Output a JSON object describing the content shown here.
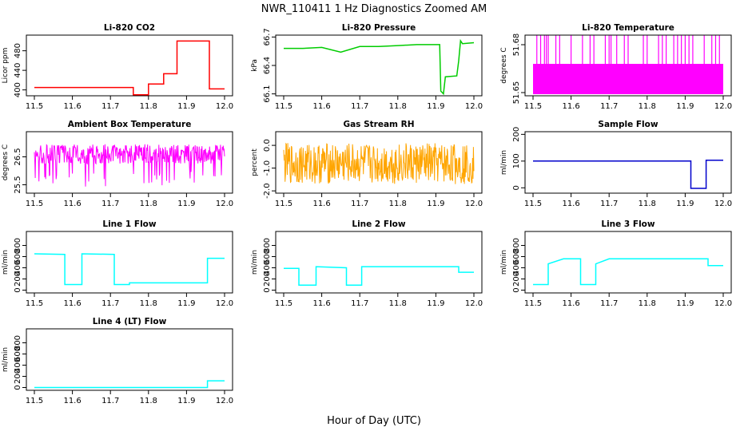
{
  "figure": {
    "title": "NWR_110411  1 Hz Diagnostics Zoomed AM",
    "xlabel": "Hour of Day (UTC)"
  },
  "chart_data": [
    {
      "type": "line",
      "title": "Li-820 CO2",
      "ylabel": "Licor ppm",
      "color": "#ff0000",
      "xlim": [
        11.5,
        12.0
      ],
      "xticks": [
        11.5,
        11.6,
        11.7,
        11.8,
        11.9,
        12.0
      ],
      "ylim": [
        388,
        512
      ],
      "yticks": [
        400,
        440,
        480
      ],
      "series": [
        {
          "x": [
            11.5,
            11.76,
            11.76,
            11.8,
            11.8,
            11.84,
            11.84,
            11.875,
            11.875,
            11.96,
            11.96,
            12.0
          ],
          "y": [
            405,
            405,
            390,
            390,
            412,
            412,
            433,
            433,
            500,
            500,
            402,
            402
          ]
        }
      ]
    },
    {
      "type": "line",
      "title": "Li-820 Pressure",
      "ylabel": "kPa",
      "color": "#00cc00",
      "xlim": [
        11.5,
        12.0
      ],
      "xticks": [
        11.5,
        11.6,
        11.7,
        11.8,
        11.9,
        12.0
      ],
      "ylim": [
        66.08,
        66.72
      ],
      "yticks": [
        66.1,
        66.4,
        66.7
      ],
      "series": [
        {
          "x": [
            11.5,
            11.55,
            11.6,
            11.65,
            11.7,
            11.75,
            11.8,
            11.85,
            11.88,
            11.91,
            11.913,
            11.92,
            11.925,
            11.955,
            11.96,
            11.965,
            11.97,
            12.0
          ],
          "y": [
            66.58,
            66.58,
            66.59,
            66.54,
            66.6,
            66.6,
            66.61,
            66.62,
            66.62,
            66.62,
            66.13,
            66.1,
            66.28,
            66.29,
            66.45,
            66.66,
            66.63,
            66.64
          ]
        }
      ]
    },
    {
      "type": "line",
      "title": "Li-820 Temperature",
      "ylabel": "degrees C",
      "color": "#ff00ff",
      "xlim": [
        11.5,
        12.0
      ],
      "xticks": [
        11.5,
        11.6,
        11.7,
        11.8,
        11.9,
        12.0
      ],
      "ylim": [
        51.648,
        51.686
      ],
      "yticks": [
        51.65,
        51.68
      ],
      "band": [
        51.649,
        51.668
      ],
      "spike_top": 51.686,
      "spikes": [
        11.51,
        11.52,
        11.53,
        11.535,
        11.54,
        11.56,
        11.57,
        11.6,
        11.63,
        11.65,
        11.66,
        11.69,
        11.7,
        11.705,
        11.72,
        11.74,
        11.75,
        11.79,
        11.8,
        11.83,
        11.84,
        11.85,
        11.87,
        11.88,
        11.89,
        11.9,
        11.91,
        11.92,
        11.95,
        11.97,
        11.98,
        11.99
      ]
    },
    {
      "type": "line",
      "title": "Ambient Box Temperature",
      "ylabel": "degrees C",
      "color": "#ff00ff",
      "xlim": [
        11.5,
        12.0
      ],
      "xticks": [
        11.5,
        11.6,
        11.7,
        11.8,
        11.9,
        12.0
      ],
      "ylim": [
        25.2,
        27.4
      ],
      "yticks": [
        25.5,
        26.5
      ],
      "noise": {
        "mean": 26.6,
        "amp": 0.35,
        "dip_min": 25.4
      }
    },
    {
      "type": "line",
      "title": "Gas Stream RH",
      "ylabel": "percent",
      "color": "#ffa500",
      "xlim": [
        11.5,
        12.0
      ],
      "xticks": [
        11.5,
        11.6,
        11.7,
        11.8,
        11.9,
        12.0
      ],
      "ylim": [
        -2.1,
        0.6
      ],
      "yticks": [
        -2.0,
        -1.0,
        0.0
      ],
      "noise": {
        "mean": -0.8,
        "amp": 0.9
      }
    },
    {
      "type": "line",
      "title": "Sample Flow",
      "ylabel": "ml/min",
      "color": "#0000cc",
      "xlim": [
        11.5,
        12.0
      ],
      "xticks": [
        11.5,
        11.6,
        11.7,
        11.8,
        11.9,
        12.0
      ],
      "ylim": [
        -20,
        210
      ],
      "yticks": [
        0,
        100,
        200
      ],
      "series": [
        {
          "x": [
            11.5,
            11.915,
            11.915,
            11.955,
            11.955,
            12.0
          ],
          "y": [
            100,
            100,
            -2,
            -2,
            103,
            103
          ]
        }
      ]
    },
    {
      "type": "line",
      "title": "Line 1 Flow",
      "ylabel": "ml/min",
      "color": "#00ffff",
      "xlim": [
        11.5,
        12.0
      ],
      "xticks": [
        11.5,
        11.6,
        11.7,
        11.8,
        11.9,
        12.0
      ],
      "ylim": [
        -50,
        1050
      ],
      "yticks": [
        0,
        200,
        400,
        600,
        800
      ],
      "series": [
        {
          "x": [
            11.5,
            11.58,
            11.58,
            11.625,
            11.625,
            11.71,
            11.71,
            11.75,
            11.75,
            11.955,
            11.955,
            12.0
          ],
          "y": [
            650,
            640,
            100,
            100,
            650,
            640,
            100,
            100,
            130,
            130,
            570,
            570
          ]
        }
      ]
    },
    {
      "type": "line",
      "title": "Line 2 Flow",
      "ylabel": "ml/min",
      "color": "#00ffff",
      "xlim": [
        11.5,
        12.0
      ],
      "xticks": [
        11.5,
        11.6,
        11.7,
        11.8,
        11.9,
        12.0
      ],
      "ylim": [
        -50,
        1050
      ],
      "yticks": [
        0,
        200,
        400,
        600,
        800
      ],
      "series": [
        {
          "x": [
            11.5,
            11.54,
            11.54,
            11.585,
            11.585,
            11.665,
            11.665,
            11.705,
            11.705,
            11.96,
            11.96,
            12.0
          ],
          "y": [
            390,
            390,
            90,
            90,
            420,
            400,
            90,
            90,
            420,
            420,
            320,
            320
          ]
        }
      ]
    },
    {
      "type": "line",
      "title": "Line 3 Flow",
      "ylabel": "ml/min",
      "color": "#00ffff",
      "xlim": [
        11.5,
        12.0
      ],
      "xticks": [
        11.5,
        11.6,
        11.7,
        11.8,
        11.9,
        12.0
      ],
      "ylim": [
        -50,
        1050
      ],
      "yticks": [
        0,
        200,
        400,
        600,
        800
      ],
      "series": [
        {
          "x": [
            11.5,
            11.54,
            11.54,
            11.58,
            11.625,
            11.625,
            11.665,
            11.665,
            11.7,
            11.96,
            11.96,
            12.0
          ],
          "y": [
            100,
            100,
            470,
            560,
            560,
            100,
            100,
            470,
            560,
            560,
            440,
            440
          ]
        }
      ]
    },
    {
      "type": "line",
      "title": "Line 4 (LT) Flow",
      "ylabel": "ml/min",
      "color": "#00ffff",
      "xlim": [
        11.5,
        12.0
      ],
      "xticks": [
        11.5,
        11.6,
        11.7,
        11.8,
        11.9,
        12.0
      ],
      "ylim": [
        -50,
        1050
      ],
      "yticks": [
        0,
        200,
        400,
        600,
        800
      ],
      "series": [
        {
          "x": [
            11.5,
            11.955,
            11.955,
            12.0
          ],
          "y": [
            0,
            0,
            120,
            120
          ]
        }
      ]
    }
  ]
}
